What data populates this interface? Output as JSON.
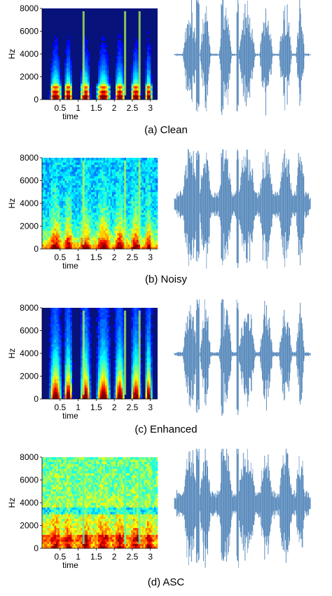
{
  "figure": {
    "panels": [
      {
        "id": "clean",
        "caption": "(a) Clean",
        "variant": "clean"
      },
      {
        "id": "noisy",
        "caption": "(b) Noisy",
        "variant": "noisy"
      },
      {
        "id": "enhanced",
        "caption": "(c) Enhanced",
        "variant": "enhanced"
      },
      {
        "id": "asc",
        "caption": "(d) ASC",
        "variant": "asc"
      }
    ]
  },
  "chart_data": [
    {
      "type": "heatmap",
      "title": "",
      "ylabel": "Hz",
      "xlabel": "time",
      "yticks": [
        0,
        2000,
        4000,
        6000,
        8000
      ],
      "xticks": [
        0.5,
        1,
        1.5,
        2,
        2.5,
        3
      ],
      "ylim": [
        0,
        8000
      ],
      "xlim": [
        0,
        3.2
      ],
      "colormap": "jet",
      "grid": false
    },
    {
      "type": "heatmap",
      "title": "",
      "ylabel": "Hz",
      "xlabel": "time",
      "yticks": [
        0,
        2000,
        4000,
        6000,
        8000
      ],
      "xticks": [
        0.5,
        1,
        1.5,
        2,
        2.5,
        3
      ],
      "ylim": [
        0,
        8000
      ],
      "xlim": [
        0,
        3.2
      ],
      "colormap": "jet",
      "grid": false
    },
    {
      "type": "heatmap",
      "title": "",
      "ylabel": "Hz",
      "xlabel": "time",
      "yticks": [
        0,
        2000,
        4000,
        6000,
        8000
      ],
      "xticks": [
        0.5,
        1,
        1.5,
        2,
        2.5,
        3
      ],
      "ylim": [
        0,
        8000
      ],
      "xlim": [
        0,
        3.2
      ],
      "colormap": "jet",
      "grid": false
    },
    {
      "type": "heatmap",
      "title": "",
      "ylabel": "Hz",
      "xlabel": "time",
      "yticks": [
        0,
        2000,
        4000,
        6000,
        8000
      ],
      "xticks": [
        0.5,
        1,
        1.5,
        2,
        2.5,
        3
      ],
      "ylim": [
        0,
        8000
      ],
      "xlim": [
        0,
        3.2
      ],
      "colormap": "jet",
      "grid": false
    }
  ],
  "colors": {
    "wave": "#4a7fb5",
    "wave_light": "#7fa7cf",
    "spec_dark": "#07127a"
  }
}
